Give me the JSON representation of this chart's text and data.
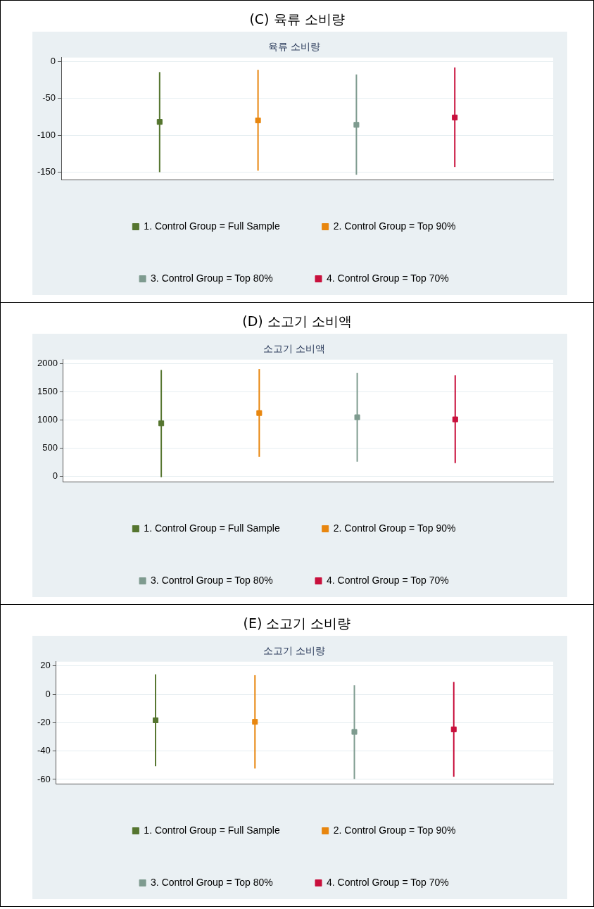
{
  "chart_data": [
    {
      "type": "scatter",
      "title": "(C) 육류 소비량",
      "subtitle": "육류 소비량",
      "categories": [
        null,
        null,
        null,
        null
      ],
      "ylim": [
        -160,
        5
      ],
      "yticks": [
        0,
        -50,
        -100,
        -150
      ],
      "grid": "y",
      "legend": "bottom",
      "marker": "square",
      "tick_labels": "y",
      "series": [
        {
          "name": "1. Control Group = Full Sample",
          "color": "#55752f",
          "values": [
            -82,
            null,
            null,
            null
          ],
          "errors": [
            [
              -150,
              -14.6
            ],
            null,
            null,
            null
          ]
        },
        {
          "name": "2. Control Group = Top 90%",
          "color": "#e8860e",
          "values": [
            null,
            -80,
            null,
            null
          ],
          "errors": [
            null,
            [
              -148,
              -11.5
            ],
            null,
            null
          ]
        },
        {
          "name": "3. Control Group = Top 80%",
          "color": "#7e9b8f",
          "values": [
            null,
            null,
            -86,
            null
          ],
          "errors": [
            null,
            null,
            [
              -153.5,
              -17.8
            ],
            null
          ]
        },
        {
          "name": "4. Control Group = Top 70%",
          "color": "#c8103c",
          "values": [
            null,
            null,
            null,
            -76
          ],
          "errors": [
            null,
            null,
            null,
            [
              -143,
              -8.3
            ]
          ]
        }
      ]
    },
    {
      "type": "scatter",
      "title": "(D) 소고기 소비액",
      "subtitle": "소고기 소비액",
      "categories": [
        null,
        null,
        null,
        null
      ],
      "ylim": [
        -100,
        2075
      ],
      "yticks": [
        0,
        500,
        1000,
        1500,
        2000
      ],
      "grid": "y",
      "legend": "bottom",
      "marker": "square",
      "tick_labels": "y",
      "series": [
        {
          "name": "1. Control Group = Full Sample",
          "color": "#55752f",
          "values": [
            939,
            null,
            null,
            null
          ],
          "errors": [
            [
              -21,
              1891
            ],
            null,
            null,
            null
          ]
        },
        {
          "name": "2. Control Group = Top 90%",
          "color": "#e8860e",
          "values": [
            null,
            1123,
            null,
            null
          ],
          "errors": [
            null,
            [
              342,
              1908
            ],
            null,
            null
          ]
        },
        {
          "name": "3. Control Group = Top 80%",
          "color": "#7e9b8f",
          "values": [
            null,
            null,
            1048,
            null
          ],
          "errors": [
            null,
            null,
            [
              255,
              1837
            ],
            null
          ]
        },
        {
          "name": "4. Control Group = Top 70%",
          "color": "#c8103c",
          "values": [
            null,
            null,
            null,
            1010
          ],
          "errors": [
            null,
            null,
            null,
            [
              230,
              1795
            ]
          ]
        }
      ]
    },
    {
      "type": "scatter",
      "title": "(E) 소고기 소비량",
      "subtitle": "소고기 소비량",
      "categories": [
        null,
        null,
        null,
        null
      ],
      "ylim": [
        -63,
        23
      ],
      "yticks": [
        20,
        0,
        -20,
        -40,
        -60
      ],
      "grid": "y",
      "legend": "bottom",
      "marker": "square",
      "tick_labels": "y",
      "series": [
        {
          "name": "1. Control Group = Full Sample",
          "color": "#55752f",
          "values": [
            -18.3,
            null,
            null,
            null
          ],
          "errors": [
            [
              -50.7,
              14.1
            ],
            null,
            null,
            null
          ]
        },
        {
          "name": "2. Control Group = Top 90%",
          "color": "#e8860e",
          "values": [
            null,
            -19.4,
            null,
            null
          ],
          "errors": [
            null,
            [
              -52.3,
              13.5
            ],
            null,
            null
          ]
        },
        {
          "name": "3. Control Group = Top 80%",
          "color": "#7e9b8f",
          "values": [
            null,
            null,
            -26.5,
            null
          ],
          "errors": [
            null,
            null,
            [
              -59.7,
              6.4
            ],
            null
          ]
        },
        {
          "name": "4. Control Group = Top 70%",
          "color": "#c8103c",
          "values": [
            null,
            null,
            null,
            -24.7
          ],
          "errors": [
            null,
            null,
            null,
            [
              -58.1,
              8.7
            ]
          ]
        }
      ]
    }
  ]
}
